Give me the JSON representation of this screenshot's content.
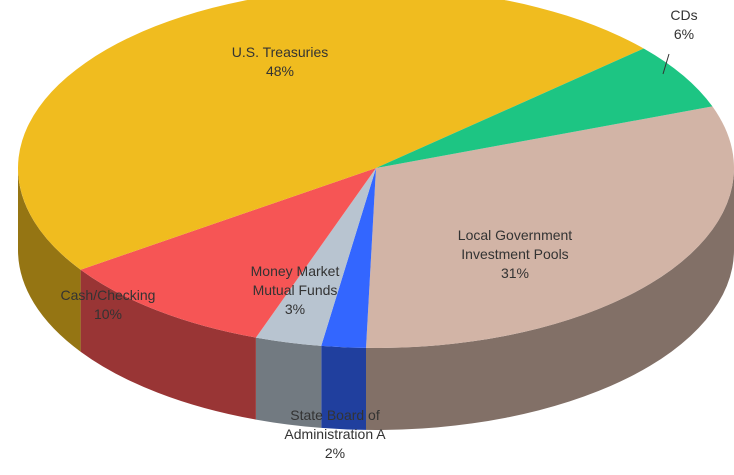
{
  "chart_data": {
    "type": "pie3d",
    "categories": [
      "Local Government Investment Pools",
      "State Board of Administration A",
      "Money Market Mutual Funds",
      "Cash/Checking",
      "U.S. Treasuries",
      "CDs"
    ],
    "values": [
      31,
      2,
      3,
      10,
      48,
      6
    ],
    "value_labels": [
      "31%",
      "2%",
      "3%",
      "10%",
      "48%",
      "6%"
    ],
    "colors": [
      "#d2b4a6",
      "#3366ff",
      "#b8c4d0",
      "#f65555",
      "#f0bc1f",
      "#1dc583"
    ]
  }
}
